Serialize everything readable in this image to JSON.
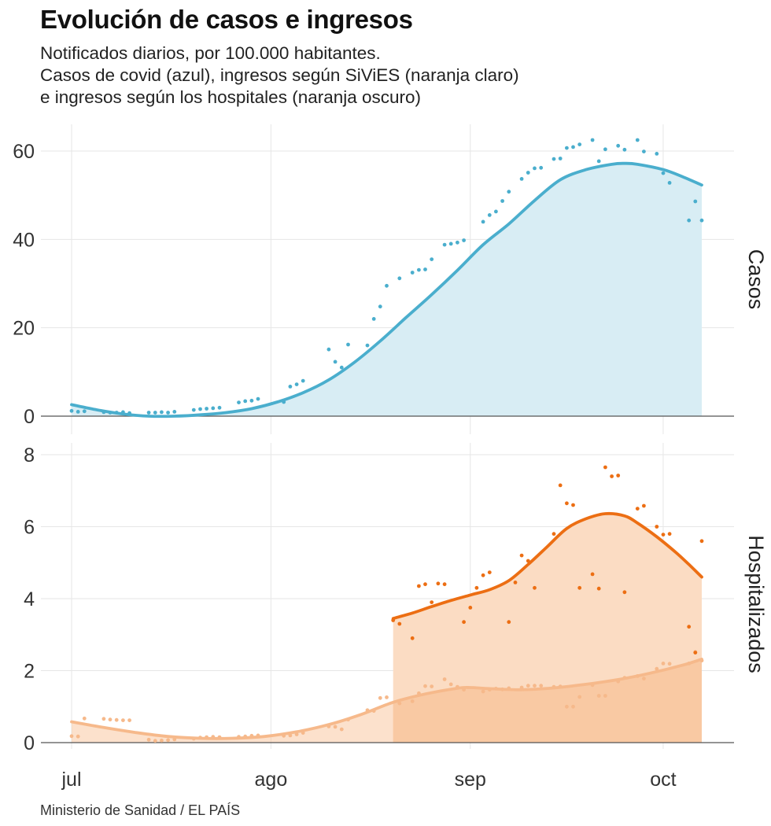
{
  "header": {
    "title": "Evolución de casos e ingresos",
    "subtitle_lines": [
      "Notificados diarios, por 100.000 habitantes.",
      "Casos de covid (azul), ingresos según SiViES (naranja claro)",
      "e ingresos según los hospitales (naranja oscuro)"
    ]
  },
  "footer": {
    "source": "Ministerio de Sanidad / EL PAÍS"
  },
  "colors": {
    "cases": "#4aaecd",
    "cases_fill": "#d8edf4",
    "sivies": "#f6b98b",
    "sivies_fill": "#f9c9a3",
    "hospitals": "#ec6e13",
    "hospitals_fill": "#fbdcc3",
    "grid": "#e6e6e6",
    "axis": "#555555"
  },
  "chart_data": [
    {
      "type": "line",
      "facet_label": "Casos",
      "x_unit": "days since 1 July",
      "xlim": [
        0,
        100
      ],
      "x_ticks": [
        0,
        31,
        62,
        92
      ],
      "x_tick_labels": [
        "jul",
        "ago",
        "sep",
        "oct"
      ],
      "ylim": [
        0,
        60
      ],
      "y_ticks": [
        0,
        20,
        40,
        60
      ],
      "y_tick_labels": [
        "0",
        "20",
        "40",
        "60"
      ],
      "series": [
        {
          "name": "Casos de covid",
          "color_key": "cases",
          "trend": {
            "x": [
              0,
              4,
              8,
              12,
              16,
              20,
              24,
              28,
              32,
              36,
              40,
              44,
              48,
              52,
              56,
              60,
              64,
              68,
              72,
              76,
              80,
              84,
              86,
              88,
              92,
              95,
              98
            ],
            "y": [
              2.6,
              1.4,
              0.5,
              0,
              0,
              0.3,
              0.8,
              1.7,
              3.2,
              5.3,
              8.2,
              12.2,
              17,
              22.3,
              27.5,
              33,
              38.8,
              43.5,
              48.8,
              53.5,
              55.8,
              57,
              57.2,
              57,
              55.8,
              54.2,
              52.3
            ]
          },
          "points": {
            "x": [
              0,
              1,
              2,
              5,
              6,
              7,
              8,
              9,
              12,
              13,
              14,
              15,
              16,
              19,
              20,
              21,
              22,
              23,
              26,
              27,
              28,
              29,
              33,
              34,
              35,
              36,
              40,
              41,
              42,
              43,
              46,
              47,
              48,
              49,
              51,
              53,
              54,
              55,
              56,
              58,
              59,
              60,
              61,
              64,
              65,
              66,
              67,
              68,
              70,
              71,
              72,
              73,
              75,
              76,
              77,
              78,
              79,
              81,
              82,
              83,
              85,
              86,
              88,
              89,
              91,
              92,
              93,
              96,
              97,
              98
            ],
            "y": [
              1.2,
              1,
              1.1,
              0.9,
              0.8,
              0.8,
              0.9,
              0.7,
              0.8,
              0.8,
              0.9,
              0.8,
              1,
              1.4,
              1.6,
              1.7,
              1.8,
              1.9,
              3.1,
              3.4,
              3.5,
              3.9,
              3.2,
              6.7,
              7.2,
              8,
              15.1,
              12.3,
              11,
              16.2,
              16,
              22,
              24.8,
              29.5,
              31.2,
              32.5,
              33.1,
              33.2,
              35.5,
              38.8,
              39,
              39.3,
              39.8,
              44,
              45.5,
              46.3,
              48.7,
              50.8,
              53.7,
              55.1,
              56.1,
              56.2,
              58.2,
              58.3,
              60.7,
              60.9,
              61.5,
              62.5,
              57.7,
              60.4,
              61.2,
              60.3,
              62.5,
              59.9,
              59.4,
              55,
              52.8,
              44.3,
              48.6,
              44.3
            ]
          }
        }
      ]
    },
    {
      "type": "line",
      "facet_label": "Hospitalizados",
      "x_unit": "days since 1 July",
      "xlim": [
        0,
        100
      ],
      "x_ticks": [
        0,
        31,
        62,
        92
      ],
      "x_tick_labels": [
        "jul",
        "ago",
        "sep",
        "oct"
      ],
      "ylim": [
        0,
        8
      ],
      "y_ticks": [
        0,
        2,
        4,
        6,
        8
      ],
      "y_tick_labels": [
        "0",
        "2",
        "4",
        "6",
        "8"
      ],
      "series": [
        {
          "name": "Ingresos según SiViES",
          "color_key": "sivies",
          "trend": {
            "x": [
              0,
              5,
              10,
              15,
              20,
              25,
              30,
              35,
              40,
              45,
              50,
              55,
              60,
              62,
              65,
              70,
              75,
              80,
              85,
              90,
              95,
              98
            ],
            "y": [
              0.58,
              0.42,
              0.28,
              0.17,
              0.12,
              0.12,
              0.17,
              0.3,
              0.5,
              0.78,
              1.12,
              1.35,
              1.51,
              1.53,
              1.5,
              1.47,
              1.52,
              1.62,
              1.75,
              1.93,
              2.15,
              2.32
            ]
          },
          "points": {
            "x": [
              0,
              1,
              2,
              5,
              6,
              7,
              8,
              9,
              12,
              13,
              14,
              15,
              16,
              19,
              20,
              21,
              22,
              23,
              26,
              27,
              28,
              29,
              33,
              34,
              35,
              36,
              40,
              41,
              42,
              43,
              46,
              47,
              48,
              49,
              51,
              53,
              54,
              55,
              56,
              58,
              59,
              60,
              61,
              64,
              65,
              66,
              67,
              68,
              70,
              71,
              72,
              73,
              75,
              76,
              77,
              78,
              79,
              81,
              82,
              83,
              85,
              86,
              88,
              89,
              91,
              92,
              93,
              96,
              97,
              98
            ],
            "y": [
              0.18,
              0.17,
              0.67,
              0.66,
              0.64,
              0.63,
              0.62,
              0.62,
              0.08,
              0.05,
              0.06,
              0.07,
              0.09,
              0.11,
              0.14,
              0.15,
              0.16,
              0.15,
              0.16,
              0.17,
              0.19,
              0.2,
              0.19,
              0.2,
              0.23,
              0.27,
              0.45,
              0.44,
              0.37,
              0.64,
              0.9,
              0.88,
              1.24,
              1.26,
              1.09,
              1.15,
              1.37,
              1.57,
              1.56,
              1.76,
              1.62,
              1.55,
              1.47,
              1.42,
              1.47,
              1.5,
              1.48,
              1.51,
              1.53,
              1.58,
              1.58,
              1.58,
              1.55,
              1.56,
              1,
              1,
              1.27,
              1.6,
              1.3,
              1.3,
              1.7,
              1.8,
              1.85,
              1.78,
              2.05,
              2.2,
              2.19,
              2.2,
              2.52,
              2.28
            ]
          }
        },
        {
          "name": "Ingresos según los hospitales",
          "color_key": "hospitals",
          "trend": {
            "x": [
              50,
              53,
              56,
              59,
              62,
              65,
              68,
              71,
              74,
              77,
              80,
              83,
              86,
              88,
              91,
              94,
              96,
              98
            ],
            "y": [
              3.45,
              3.6,
              3.78,
              3.95,
              4.1,
              4.25,
              4.5,
              4.95,
              5.45,
              5.95,
              6.22,
              6.36,
              6.3,
              6.1,
              5.72,
              5.28,
              4.95,
              4.6
            ]
          },
          "points": {
            "x": [
              50,
              51,
              53,
              54,
              55,
              56,
              57,
              58,
              61,
              62,
              63,
              64,
              65,
              68,
              69,
              70,
              71,
              72,
              75,
              76,
              77,
              78,
              79,
              81,
              82,
              83,
              84,
              85,
              86,
              88,
              89,
              91,
              92,
              93,
              96,
              97,
              98
            ],
            "y": [
              3.4,
              3.3,
              2.9,
              4.35,
              4.4,
              3.9,
              4.42,
              4.4,
              3.35,
              3.75,
              4.3,
              4.65,
              4.73,
              3.35,
              4.45,
              5.2,
              5.05,
              4.3,
              5.8,
              7.15,
              6.65,
              6.6,
              4.3,
              4.68,
              4.28,
              7.65,
              7.4,
              7.42,
              4.18,
              6.5,
              6.58,
              6,
              5.78,
              5.8,
              3.22,
              2.5,
              5.6
            ]
          }
        }
      ]
    }
  ]
}
